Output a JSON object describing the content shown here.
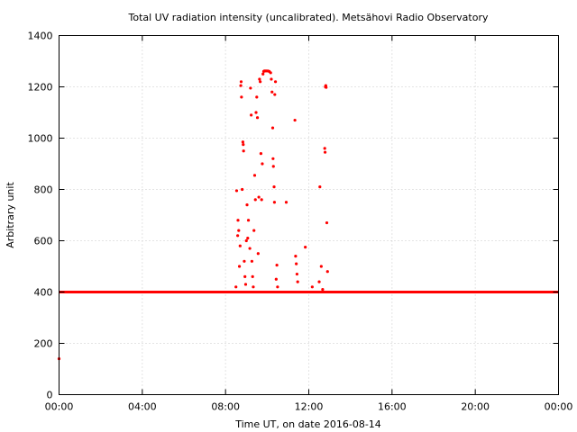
{
  "chart_data": {
    "type": "scatter",
    "title": "Total UV radiation intensity (uncalibrated). Metsähovi Radio Observatory",
    "xlabel": "Time UT, on date 2016-08-14",
    "ylabel": "Arbitrary unit",
    "xlim": [
      "00:00",
      "24:00"
    ],
    "ylim": [
      0,
      1400
    ],
    "xticks": [
      "00:00",
      "04:00",
      "08:00",
      "12:00",
      "16:00",
      "20:00",
      "00:00"
    ],
    "yticks": [
      "0",
      "200",
      "400",
      "600",
      "800",
      "1000",
      "1200",
      "1400"
    ],
    "grid": true,
    "legend": "none",
    "marker_color": "#ff0000",
    "series": [
      {
        "baseline": {
          "y": 400,
          "x_from": "00:00",
          "x_to": "24:00"
        },
        "points": [
          {
            "x": "00:00",
            "y": 140
          },
          {
            "x": "08:30",
            "y": 420
          },
          {
            "x": "08:32",
            "y": 795
          },
          {
            "x": "08:35",
            "y": 620
          },
          {
            "x": "08:36",
            "y": 680
          },
          {
            "x": "08:38",
            "y": 640
          },
          {
            "x": "08:40",
            "y": 500
          },
          {
            "x": "08:42",
            "y": 580
          },
          {
            "x": "08:44",
            "y": 1205
          },
          {
            "x": "08:45",
            "y": 1220
          },
          {
            "x": "08:46",
            "y": 1160
          },
          {
            "x": "08:48",
            "y": 800
          },
          {
            "x": "08:50",
            "y": 985
          },
          {
            "x": "08:51",
            "y": 975
          },
          {
            "x": "08:52",
            "y": 950
          },
          {
            "x": "08:54",
            "y": 520
          },
          {
            "x": "08:56",
            "y": 460
          },
          {
            "x": "08:58",
            "y": 430
          },
          {
            "x": "09:00",
            "y": 600
          },
          {
            "x": "09:02",
            "y": 740
          },
          {
            "x": "09:04",
            "y": 610
          },
          {
            "x": "09:06",
            "y": 680
          },
          {
            "x": "09:10",
            "y": 570
          },
          {
            "x": "09:12",
            "y": 1195
          },
          {
            "x": "09:14",
            "y": 1090
          },
          {
            "x": "09:16",
            "y": 520
          },
          {
            "x": "09:18",
            "y": 460
          },
          {
            "x": "09:20",
            "y": 420
          },
          {
            "x": "09:22",
            "y": 640
          },
          {
            "x": "09:24",
            "y": 855
          },
          {
            "x": "09:26",
            "y": 760
          },
          {
            "x": "09:28",
            "y": 1100
          },
          {
            "x": "09:30",
            "y": 1160
          },
          {
            "x": "09:32",
            "y": 1080
          },
          {
            "x": "09:34",
            "y": 550
          },
          {
            "x": "09:36",
            "y": 770
          },
          {
            "x": "09:38",
            "y": 1230
          },
          {
            "x": "09:40",
            "y": 1220
          },
          {
            "x": "09:42",
            "y": 940
          },
          {
            "x": "09:44",
            "y": 760
          },
          {
            "x": "09:46",
            "y": 900
          },
          {
            "x": "09:48",
            "y": 1250
          },
          {
            "x": "09:50",
            "y": 1260
          },
          {
            "x": "09:52",
            "y": 1262
          },
          {
            "x": "09:55",
            "y": 1262
          },
          {
            "x": "09:58",
            "y": 1262
          },
          {
            "x": "10:02",
            "y": 1262
          },
          {
            "x": "10:06",
            "y": 1260
          },
          {
            "x": "10:10",
            "y": 1255
          },
          {
            "x": "10:12",
            "y": 1230
          },
          {
            "x": "10:14",
            "y": 1180
          },
          {
            "x": "10:16",
            "y": 1040
          },
          {
            "x": "10:17",
            "y": 920
          },
          {
            "x": "10:18",
            "y": 890
          },
          {
            "x": "10:20",
            "y": 810
          },
          {
            "x": "10:21",
            "y": 750
          },
          {
            "x": "10:22",
            "y": 1170
          },
          {
            "x": "10:24",
            "y": 1220
          },
          {
            "x": "10:26",
            "y": 450
          },
          {
            "x": "10:28",
            "y": 505
          },
          {
            "x": "10:30",
            "y": 420
          },
          {
            "x": "10:55",
            "y": 750
          },
          {
            "x": "11:20",
            "y": 1070
          },
          {
            "x": "11:22",
            "y": 540
          },
          {
            "x": "11:24",
            "y": 510
          },
          {
            "x": "11:26",
            "y": 470
          },
          {
            "x": "11:28",
            "y": 440
          },
          {
            "x": "11:50",
            "y": 575
          },
          {
            "x": "12:10",
            "y": 420
          },
          {
            "x": "12:30",
            "y": 440
          },
          {
            "x": "12:32",
            "y": 810
          },
          {
            "x": "12:36",
            "y": 500
          },
          {
            "x": "12:40",
            "y": 410
          },
          {
            "x": "12:46",
            "y": 960
          },
          {
            "x": "12:47",
            "y": 945
          },
          {
            "x": "12:48",
            "y": 1200
          },
          {
            "x": "12:49",
            "y": 1205
          },
          {
            "x": "12:50",
            "y": 1198
          },
          {
            "x": "12:52",
            "y": 670
          },
          {
            "x": "12:54",
            "y": 480
          }
        ]
      }
    ]
  }
}
